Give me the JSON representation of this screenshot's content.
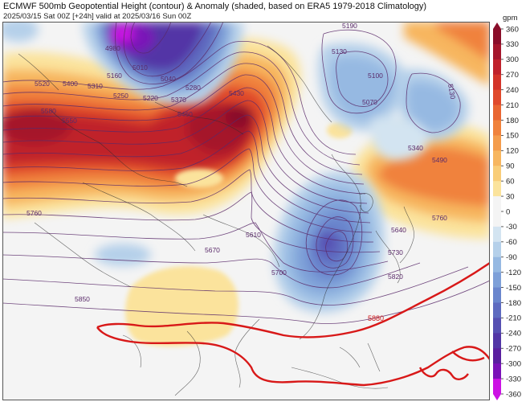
{
  "header": {
    "title": "ECMWF 500mb Geopotential Height (contour) & Anomaly (shaded, based on ERA5 1979-2018 Climatology)",
    "subtitle": "2025/03/15 Sat 00Z [+24h] valid at 2025/03/16 Sun 00Z"
  },
  "colorbar": {
    "unit": "gpm",
    "ticks": [
      360,
      330,
      300,
      270,
      240,
      210,
      180,
      150,
      120,
      90,
      60,
      30,
      0,
      -30,
      -60,
      -90,
      -120,
      -150,
      -180,
      -210,
      -240,
      -270,
      -300,
      -330,
      -360
    ],
    "colors": {
      "high": [
        "#8a0e2a",
        "#a5162c",
        "#c0222c",
        "#d3342a",
        "#e04a2c",
        "#e96632",
        "#f0823c",
        "#f49c4c",
        "#f7b65f",
        "#f9cd78",
        "#fbe39c"
      ],
      "neutral": "#f4f4f4",
      "low": [
        "#d3e4f1",
        "#b5d0ea",
        "#96b9e2",
        "#7ea0d8",
        "#6a86cd",
        "#5e6bc0",
        "#5650b2",
        "#5236a6",
        "#5a1f9f",
        "#7a12b8",
        "#cc12e4"
      ]
    }
  },
  "contour_labels": {
    "purple": [
      "5520",
      "5400",
      "5310",
      "5250",
      "5220",
      "5160",
      "5010",
      "5040",
      "4980",
      "5280",
      "5370",
      "5430",
      "5460",
      "5580",
      "5550",
      "5130",
      "5190",
      "5100",
      "5070",
      "5130",
      "5340",
      "5490",
      "5760",
      "5760",
      "5610",
      "5640",
      "5670",
      "5700",
      "5730",
      "5820",
      "5850"
    ],
    "red": [
      "5880"
    ]
  },
  "map": {
    "features": [
      "geopotential-height-contours",
      "anomaly-shading",
      "coastlines",
      "country-borders",
      "5880-gpm-line"
    ]
  }
}
